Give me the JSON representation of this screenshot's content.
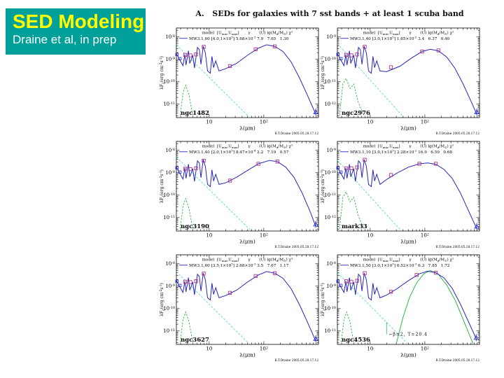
{
  "slide": {
    "title": "SED Modeling",
    "subtitle": "Draine et al, in prep",
    "header": "A.   SEDs for galaxies with 7 sst bands + at least 1 scuba band"
  },
  "colors": {
    "titlebox": "#00a09a",
    "title": "#ffff00",
    "subtitle": "#ffffff",
    "model": "#2626b8",
    "starlight": "#5fd3d3",
    "green": "#33b54a",
    "name": "#d42020",
    "points": "#aa3388",
    "bluept": "#3a3ad0",
    "frame": "#000000",
    "credit": "#222244"
  },
  "axes": {
    "xlabel": "λ(μm)",
    "ylabel": "λF_{λ}(erg cm^{-2}s^{-1})",
    "xticks": [
      1,
      2
    ],
    "xlim_log10_um": [
      0.4,
      3.0
    ],
    "grid": false
  },
  "legend_header": "model  [U_{min},U_{max}]       γ       (U) lg(M_{d}/M_{⊙}) χ^{2}",
  "credit": "B.T.Draine 2005.05.28.17.12",
  "chart_data": [
    {
      "type": "line",
      "name": "ngc1482",
      "ytop": -7.6,
      "ylim_log10": [
        -11.6,
        -7.6
      ],
      "yticks": [
        -8,
        -9,
        -10,
        -11
      ],
      "legend_model": "MW3.1,60 [4.0,1×10^{5}] 5.68×10^{-3} 7.9   7.65   1.30",
      "blue": [
        [
          0.4,
          -8.75
        ],
        [
          0.46,
          -9.02
        ],
        [
          0.52,
          -9.28
        ],
        [
          0.555,
          -8.78
        ],
        [
          0.575,
          -9.25
        ],
        [
          0.62,
          -8.62
        ],
        [
          0.645,
          -9.18
        ],
        [
          0.7,
          -8.82
        ],
        [
          0.73,
          -9.38
        ],
        [
          0.785,
          -8.47
        ],
        [
          0.82,
          -8.57
        ],
        [
          0.85,
          -9.22
        ],
        [
          0.89,
          -8.42
        ],
        [
          0.93,
          -8.72
        ],
        [
          0.97,
          -9.52
        ],
        [
          1.02,
          -9.62
        ],
        [
          1.05,
          -8.87
        ],
        [
          1.08,
          -9.37
        ],
        [
          1.12,
          -9.07
        ],
        [
          1.18,
          -9.52
        ],
        [
          1.3,
          -9.42
        ],
        [
          1.5,
          -9.18
        ],
        [
          1.7,
          -8.82
        ],
        [
          1.9,
          -8.5
        ],
        [
          2.05,
          -8.35
        ],
        [
          2.2,
          -8.42
        ],
        [
          2.35,
          -8.65
        ],
        [
          2.5,
          -9.12
        ],
        [
          2.65,
          -9.82
        ],
        [
          2.8,
          -10.62
        ],
        [
          2.95,
          -11.45
        ]
      ],
      "cyan": [
        [
          0.4,
          -8.35
        ],
        [
          1.72,
          -11.55
        ]
      ],
      "green": [
        [
          0.47,
          -11.5
        ],
        [
          0.52,
          -10.5
        ],
        [
          0.57,
          -10.15
        ],
        [
          0.63,
          -10.6
        ],
        [
          0.7,
          -11.5
        ]
      ],
      "squares": [
        [
          0.56,
          -8.8
        ],
        [
          0.655,
          -8.82
        ],
        [
          0.76,
          -8.78
        ],
        [
          0.9,
          -8.44
        ],
        [
          1.38,
          -9.3
        ],
        [
          1.85,
          -8.55
        ],
        [
          2.2,
          -8.42
        ]
      ],
      "bluepts": [
        [
          0.41,
          -8.78
        ],
        [
          0.465,
          -8.97
        ]
      ],
      "scuba": [
        2.95,
        -11.35
      ]
    },
    {
      "type": "line",
      "name": "ngc2976",
      "ytop": -8.6,
      "ylim_log10": [
        -12.6,
        -8.6
      ],
      "yticks": [
        -9,
        -10,
        -11,
        -12
      ],
      "legend_model": "MW3.1,40 [3.0,1×10^{5}] 1.65×10^{-3} 3.4   6.37   0.40",
      "blue": [
        [
          0.4,
          -9.75
        ],
        [
          0.46,
          -10.02
        ],
        [
          0.52,
          -10.28
        ],
        [
          0.555,
          -9.78
        ],
        [
          0.575,
          -10.25
        ],
        [
          0.62,
          -9.62
        ],
        [
          0.645,
          -10.18
        ],
        [
          0.7,
          -9.82
        ],
        [
          0.73,
          -10.38
        ],
        [
          0.785,
          -9.47
        ],
        [
          0.82,
          -9.57
        ],
        [
          0.85,
          -10.22
        ],
        [
          0.89,
          -9.42
        ],
        [
          0.93,
          -9.72
        ],
        [
          0.97,
          -10.52
        ],
        [
          1.02,
          -10.62
        ],
        [
          1.05,
          -9.87
        ],
        [
          1.08,
          -10.37
        ],
        [
          1.12,
          -10.07
        ],
        [
          1.18,
          -10.52
        ],
        [
          1.3,
          -10.55
        ],
        [
          1.55,
          -10.3
        ],
        [
          1.75,
          -9.95
        ],
        [
          1.95,
          -9.65
        ],
        [
          2.1,
          -9.55
        ],
        [
          2.25,
          -9.62
        ],
        [
          2.4,
          -9.9
        ],
        [
          2.55,
          -10.4
        ],
        [
          2.7,
          -11.1
        ],
        [
          2.85,
          -11.9
        ],
        [
          2.95,
          -12.45
        ]
      ],
      "cyan": [
        [
          0.4,
          -9.3
        ],
        [
          1.6,
          -12.55
        ]
      ],
      "green": [
        [
          0.44,
          -12.5
        ],
        [
          0.5,
          -11.1
        ],
        [
          0.56,
          -10.85
        ],
        [
          0.63,
          -11.3
        ],
        [
          0.7,
          -11.1
        ],
        [
          0.78,
          -11.9
        ],
        [
          0.88,
          -12.5
        ]
      ],
      "squares": [
        [
          0.56,
          -9.8
        ],
        [
          0.655,
          -9.82
        ],
        [
          0.76,
          -9.78
        ],
        [
          0.9,
          -9.44
        ],
        [
          1.38,
          -10.35
        ],
        [
          1.95,
          -9.65
        ],
        [
          2.25,
          -9.6
        ]
      ],
      "bluepts": [
        [
          0.41,
          -9.78
        ],
        [
          0.465,
          -9.97
        ]
      ],
      "scuba": [
        2.95,
        -12.35
      ]
    },
    {
      "type": "line",
      "name": "ngc3190",
      "ytop": -7.6,
      "ylim_log10": [
        -11.6,
        -7.6
      ],
      "yticks": [
        -8,
        -9,
        -10,
        -11
      ],
      "legend_model": "MW3.1,40 [2.0,1×10^{5}] 8.47×10^{-4} 2.2   7.19   0.57",
      "blue": [
        [
          0.4,
          -8.75
        ],
        [
          0.46,
          -9.02
        ],
        [
          0.52,
          -9.28
        ],
        [
          0.555,
          -8.78
        ],
        [
          0.575,
          -9.25
        ],
        [
          0.62,
          -8.62
        ],
        [
          0.645,
          -9.18
        ],
        [
          0.7,
          -8.82
        ],
        [
          0.73,
          -9.38
        ],
        [
          0.785,
          -8.47
        ],
        [
          0.82,
          -8.57
        ],
        [
          0.85,
          -9.22
        ],
        [
          0.89,
          -8.42
        ],
        [
          0.93,
          -8.72
        ],
        [
          0.97,
          -9.52
        ],
        [
          1.02,
          -9.62
        ],
        [
          1.05,
          -8.87
        ],
        [
          1.08,
          -9.37
        ],
        [
          1.12,
          -9.07
        ],
        [
          1.18,
          -9.52
        ],
        [
          1.3,
          -9.45
        ],
        [
          1.5,
          -9.2
        ],
        [
          1.7,
          -8.9
        ],
        [
          1.9,
          -8.6
        ],
        [
          2.1,
          -8.45
        ],
        [
          2.25,
          -8.5
        ],
        [
          2.4,
          -8.75
        ],
        [
          2.55,
          -9.2
        ],
        [
          2.7,
          -9.9
        ],
        [
          2.85,
          -10.75
        ],
        [
          2.95,
          -11.4
        ]
      ],
      "cyan": [
        [
          0.4,
          -8.3
        ],
        [
          1.75,
          -11.55
        ]
      ],
      "green": [
        [
          0.47,
          -11.5
        ],
        [
          0.52,
          -10.5
        ],
        [
          0.57,
          -10.15
        ],
        [
          0.63,
          -10.6
        ],
        [
          0.7,
          -11.5
        ]
      ],
      "squares": [
        [
          0.56,
          -8.82
        ],
        [
          0.655,
          -8.84
        ],
        [
          0.76,
          -8.8
        ],
        [
          0.9,
          -8.46
        ],
        [
          1.38,
          -9.35
        ],
        [
          1.9,
          -8.6
        ],
        [
          2.25,
          -8.5
        ]
      ],
      "bluepts": [
        [
          0.41,
          -8.78
        ],
        [
          0.465,
          -8.97
        ]
      ],
      "scuba": [
        2.95,
        -11.3
      ]
    },
    {
      "type": "line",
      "name": "mark33",
      "ytop": -8.6,
      "ylim_log10": [
        -12.6,
        -8.6
      ],
      "yticks": [
        -9,
        -10,
        -11,
        -12
      ],
      "legend_model": "MW3.1,10 [3.0,1×10^{5}] 2.28×10^{-2} 16.9   6.59   0.68",
      "blue": [
        [
          0.4,
          -9.75
        ],
        [
          0.46,
          -10.02
        ],
        [
          0.52,
          -10.28
        ],
        [
          0.555,
          -9.78
        ],
        [
          0.575,
          -10.25
        ],
        [
          0.62,
          -9.62
        ],
        [
          0.645,
          -10.18
        ],
        [
          0.7,
          -9.82
        ],
        [
          0.73,
          -10.38
        ],
        [
          0.785,
          -9.47
        ],
        [
          0.82,
          -9.57
        ],
        [
          0.85,
          -10.22
        ],
        [
          0.89,
          -9.42
        ],
        [
          0.93,
          -9.72
        ],
        [
          0.97,
          -10.52
        ],
        [
          1.02,
          -10.62
        ],
        [
          1.05,
          -9.87
        ],
        [
          1.08,
          -10.37
        ],
        [
          1.12,
          -10.07
        ],
        [
          1.18,
          -10.52
        ],
        [
          1.3,
          -10.3
        ],
        [
          1.5,
          -10.0
        ],
        [
          1.7,
          -9.75
        ],
        [
          1.9,
          -9.6
        ],
        [
          2.05,
          -9.56
        ],
        [
          2.2,
          -9.62
        ],
        [
          2.35,
          -9.85
        ],
        [
          2.5,
          -10.25
        ],
        [
          2.65,
          -10.9
        ],
        [
          2.8,
          -11.7
        ],
        [
          2.95,
          -12.5
        ]
      ],
      "cyan": [
        [
          0.4,
          -9.45
        ],
        [
          1.55,
          -12.55
        ]
      ],
      "green": [
        [
          0.44,
          -12.5
        ],
        [
          0.5,
          -11.1
        ],
        [
          0.56,
          -10.85
        ],
        [
          0.63,
          -11.3
        ],
        [
          0.7,
          -11.1
        ],
        [
          0.78,
          -11.9
        ],
        [
          0.88,
          -12.5
        ]
      ],
      "squares": [
        [
          0.56,
          -9.8
        ],
        [
          0.655,
          -9.8
        ],
        [
          0.76,
          -9.76
        ],
        [
          0.9,
          -9.42
        ],
        [
          1.38,
          -10.1
        ],
        [
          1.9,
          -9.6
        ],
        [
          2.2,
          -9.6
        ]
      ],
      "bluepts": [
        [
          0.41,
          -9.78
        ],
        [
          0.465,
          -9.97
        ]
      ],
      "scuba": [
        2.95,
        -12.4
      ]
    },
    {
      "type": "line",
      "name": "ngc3627",
      "ytop": -7.6,
      "ylim_log10": [
        -11.6,
        -7.6
      ],
      "yticks": [
        -8,
        -9,
        -10,
        -11
      ],
      "legend_model": "MW3.1,60 [3.5,1×10^{5}] 2.68×10^{-3} 3.5   7.67   1.17",
      "blue": [
        [
          0.4,
          -8.75
        ],
        [
          0.46,
          -9.02
        ],
        [
          0.52,
          -9.28
        ],
        [
          0.555,
          -8.78
        ],
        [
          0.575,
          -9.25
        ],
        [
          0.62,
          -8.62
        ],
        [
          0.645,
          -9.18
        ],
        [
          0.7,
          -8.82
        ],
        [
          0.73,
          -9.38
        ],
        [
          0.785,
          -8.47
        ],
        [
          0.82,
          -8.57
        ],
        [
          0.85,
          -9.22
        ],
        [
          0.89,
          -8.42
        ],
        [
          0.93,
          -8.72
        ],
        [
          0.97,
          -9.52
        ],
        [
          1.02,
          -9.62
        ],
        [
          1.05,
          -8.87
        ],
        [
          1.08,
          -9.37
        ],
        [
          1.12,
          -9.07
        ],
        [
          1.18,
          -9.52
        ],
        [
          1.3,
          -9.42
        ],
        [
          1.5,
          -9.18
        ],
        [
          1.7,
          -8.82
        ],
        [
          1.9,
          -8.5
        ],
        [
          2.05,
          -8.35
        ],
        [
          2.2,
          -8.42
        ],
        [
          2.35,
          -8.65
        ],
        [
          2.5,
          -9.12
        ],
        [
          2.65,
          -9.82
        ],
        [
          2.8,
          -10.62
        ],
        [
          2.95,
          -11.45
        ]
      ],
      "cyan": [
        [
          0.4,
          -8.35
        ],
        [
          1.72,
          -11.55
        ]
      ],
      "green": [
        [
          0.47,
          -11.5
        ],
        [
          0.52,
          -10.5
        ],
        [
          0.57,
          -10.15
        ],
        [
          0.63,
          -10.6
        ],
        [
          0.7,
          -11.5
        ]
      ],
      "squares": [
        [
          0.56,
          -8.8
        ],
        [
          0.655,
          -8.82
        ],
        [
          0.76,
          -8.78
        ],
        [
          0.9,
          -8.44
        ],
        [
          1.38,
          -9.3
        ],
        [
          1.85,
          -8.55
        ],
        [
          2.2,
          -8.42
        ]
      ],
      "bluepts": [
        [
          0.41,
          -8.78
        ],
        [
          0.465,
          -8.97
        ]
      ],
      "scuba": [
        2.95,
        -11.35
      ]
    },
    {
      "type": "line",
      "name": "ngc4536",
      "ytop": -7.6,
      "ylim_log10": [
        -11.6,
        -7.6
      ],
      "yticks": [
        -8,
        -9,
        -10,
        -11
      ],
      "legend_model": "MW3.1,50 [3.0,1×10^{5}] 6.52×10^{-3} 6.3   7.85   1.72",
      "annotation": "~β=2, T=20.4",
      "blue": [
        [
          0.4,
          -8.75
        ],
        [
          0.46,
          -9.02
        ],
        [
          0.52,
          -9.28
        ],
        [
          0.555,
          -8.78
        ],
        [
          0.575,
          -9.25
        ],
        [
          0.62,
          -8.62
        ],
        [
          0.645,
          -9.18
        ],
        [
          0.7,
          -8.82
        ],
        [
          0.73,
          -9.38
        ],
        [
          0.785,
          -8.47
        ],
        [
          0.82,
          -8.57
        ],
        [
          0.85,
          -9.22
        ],
        [
          0.89,
          -8.42
        ],
        [
          0.93,
          -8.72
        ],
        [
          0.97,
          -9.52
        ],
        [
          1.02,
          -9.62
        ],
        [
          1.05,
          -8.87
        ],
        [
          1.08,
          -9.37
        ],
        [
          1.12,
          -9.07
        ],
        [
          1.18,
          -9.52
        ],
        [
          1.3,
          -9.4
        ],
        [
          1.5,
          -9.1
        ],
        [
          1.7,
          -8.75
        ],
        [
          1.9,
          -8.45
        ],
        [
          2.05,
          -8.33
        ],
        [
          2.2,
          -8.4
        ],
        [
          2.35,
          -8.63
        ],
        [
          2.5,
          -9.1
        ],
        [
          2.65,
          -9.8
        ],
        [
          2.8,
          -10.6
        ],
        [
          2.95,
          -11.4
        ]
      ],
      "cyan": [
        [
          0.4,
          -8.4
        ],
        [
          1.68,
          -11.55
        ]
      ],
      "green": [
        [
          0.47,
          -11.5
        ],
        [
          0.52,
          -10.5
        ],
        [
          0.57,
          -10.15
        ],
        [
          0.63,
          -10.6
        ],
        [
          0.7,
          -11.5
        ]
      ],
      "green2": [
        [
          1.48,
          -11.55
        ],
        [
          1.6,
          -10.4
        ],
        [
          1.72,
          -9.5
        ],
        [
          1.85,
          -8.85
        ],
        [
          1.98,
          -8.45
        ],
        [
          2.1,
          -8.3
        ],
        [
          2.24,
          -8.45
        ],
        [
          2.4,
          -8.95
        ],
        [
          2.56,
          -9.65
        ],
        [
          2.72,
          -10.6
        ],
        [
          2.88,
          -11.55
        ]
      ],
      "squares": [
        [
          0.56,
          -8.78
        ],
        [
          0.655,
          -8.8
        ],
        [
          0.76,
          -8.76
        ],
        [
          0.9,
          -8.42
        ],
        [
          1.38,
          -9.25
        ],
        [
          1.85,
          -8.5
        ],
        [
          2.2,
          -8.4
        ]
      ],
      "bluepts": [
        [
          0.41,
          -8.78
        ],
        [
          0.465,
          -8.97
        ]
      ],
      "scuba": [
        2.94,
        -11.3
      ]
    }
  ]
}
